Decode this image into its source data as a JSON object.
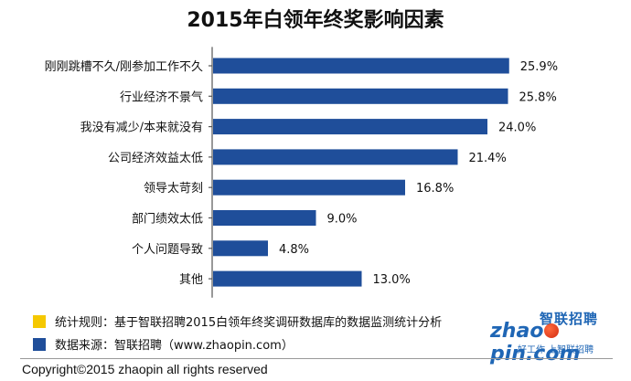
{
  "chart_data": {
    "type": "bar",
    "orientation": "horizontal",
    "title": "2015年白领年终奖影响因素",
    "categories": [
      "刚刚跳槽不久/刚参加工作不久",
      "行业经济不景气",
      "我没有减少/本来就没有",
      "公司经济效益太低",
      "领导太苛刻",
      "部门绩效太低",
      "个人问题导致",
      "其他"
    ],
    "values": [
      25.9,
      25.8,
      24.0,
      21.4,
      16.8,
      9.0,
      4.8,
      13.0
    ],
    "value_labels": [
      "25.9%",
      "25.8%",
      "24.0%",
      "21.4%",
      "16.8%",
      "9.0%",
      "4.8%",
      "13.0%"
    ],
    "xlim": [
      0,
      30
    ],
    "unit": "%",
    "bar_color": "#1f4e9a",
    "grid": false
  },
  "legend": {
    "rule_label": "统计规则：基于智联招聘2015白领年终奖调研数据库的数据监测统计分析",
    "rule_color": "#f5c800",
    "source_label": "数据来源：智联招聘（www.zhaopin.com）",
    "source_color": "#1f4e9a"
  },
  "logo": {
    "cn_name": "智联招聘",
    "en_name_pre": "zhao",
    "en_name_post": "pin.com",
    "slogan": "好工作 上智联招聘"
  },
  "footer": {
    "copyright": "Copyright©2015 zhaopin all rights reserved"
  }
}
